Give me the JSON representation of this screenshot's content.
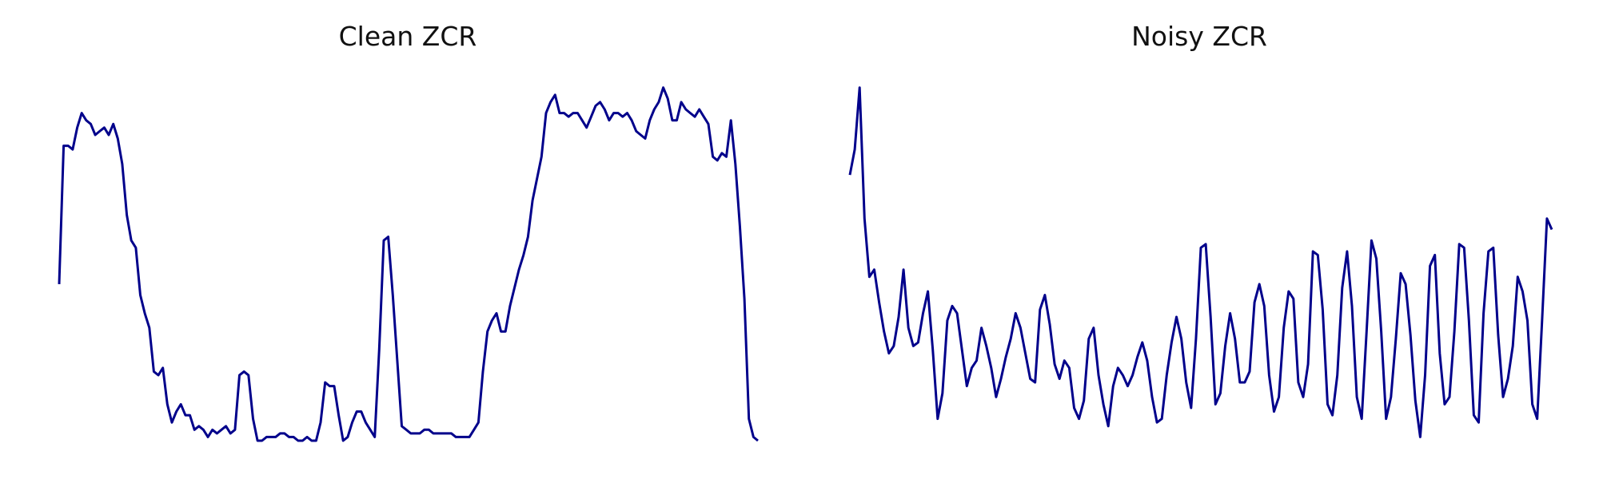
{
  "style": {
    "line_color": "#00008b",
    "background": "#ffffff"
  },
  "chart_data": [
    {
      "type": "line",
      "title": "Clean ZCR",
      "xlabel": "",
      "ylabel": "",
      "axes": "hidden",
      "grid": false,
      "xlim": [
        0,
        130
      ],
      "ylim": [
        0,
        1
      ],
      "series": [
        {
          "values": [
            0.43,
            0.81,
            0.81,
            0.8,
            0.86,
            0.9,
            0.88,
            0.87,
            0.84,
            0.85,
            0.86,
            0.84,
            0.87,
            0.83,
            0.76,
            0.62,
            0.55,
            0.53,
            0.4,
            0.35,
            0.31,
            0.19,
            0.18,
            0.2,
            0.1,
            0.05,
            0.08,
            0.1,
            0.07,
            0.07,
            0.03,
            0.04,
            0.03,
            0.01,
            0.03,
            0.02,
            0.03,
            0.04,
            0.02,
            0.03,
            0.18,
            0.19,
            0.18,
            0.06,
            0.0,
            0.0,
            0.01,
            0.01,
            0.01,
            0.02,
            0.02,
            0.01,
            0.01,
            0.0,
            0.0,
            0.01,
            0.0,
            0.0,
            0.05,
            0.16,
            0.15,
            0.15,
            0.07,
            0.0,
            0.01,
            0.05,
            0.08,
            0.08,
            0.05,
            0.03,
            0.01,
            0.25,
            0.55,
            0.56,
            0.4,
            0.22,
            0.04,
            0.03,
            0.02,
            0.02,
            0.02,
            0.03,
            0.03,
            0.02,
            0.02,
            0.02,
            0.02,
            0.02,
            0.01,
            0.01,
            0.01,
            0.01,
            0.03,
            0.05,
            0.19,
            0.3,
            0.33,
            0.35,
            0.3,
            0.3,
            0.37,
            0.42,
            0.47,
            0.51,
            0.56,
            0.66,
            0.72,
            0.78,
            0.9,
            0.93,
            0.95,
            0.9,
            0.9,
            0.89,
            0.9,
            0.9,
            0.88,
            0.86,
            0.89,
            0.92,
            0.93,
            0.91,
            0.88,
            0.9,
            0.9,
            0.89,
            0.9,
            0.88,
            0.85,
            0.84,
            0.83,
            0.88,
            0.91,
            0.93,
            0.97,
            0.94,
            0.88,
            0.88,
            0.93,
            0.91,
            0.9,
            0.89,
            0.91,
            0.89,
            0.87,
            0.78,
            0.77,
            0.79,
            0.78,
            0.88,
            0.76,
            0.59,
            0.39,
            0.06,
            0.01,
            0.0
          ]
        }
      ]
    },
    {
      "type": "line",
      "title": "Noisy ZCR",
      "xlabel": "",
      "ylabel": "",
      "axes": "hidden",
      "grid": false,
      "xlim": [
        0,
        130
      ],
      "ylim": [
        0,
        1
      ],
      "series": [
        {
          "values": [
            0.73,
            0.8,
            0.97,
            0.61,
            0.45,
            0.47,
            0.38,
            0.3,
            0.24,
            0.26,
            0.34,
            0.47,
            0.31,
            0.26,
            0.27,
            0.35,
            0.41,
            0.25,
            0.06,
            0.13,
            0.33,
            0.37,
            0.35,
            0.25,
            0.15,
            0.2,
            0.22,
            0.31,
            0.26,
            0.2,
            0.12,
            0.17,
            0.23,
            0.28,
            0.35,
            0.31,
            0.24,
            0.17,
            0.16,
            0.36,
            0.4,
            0.32,
            0.21,
            0.17,
            0.22,
            0.2,
            0.09,
            0.06,
            0.11,
            0.28,
            0.31,
            0.18,
            0.1,
            0.04,
            0.15,
            0.2,
            0.18,
            0.15,
            0.18,
            0.23,
            0.27,
            0.22,
            0.12,
            0.05,
            0.06,
            0.18,
            0.27,
            0.34,
            0.28,
            0.16,
            0.09,
            0.28,
            0.53,
            0.54,
            0.34,
            0.1,
            0.13,
            0.26,
            0.35,
            0.28,
            0.16,
            0.16,
            0.19,
            0.38,
            0.43,
            0.37,
            0.18,
            0.08,
            0.12,
            0.31,
            0.41,
            0.39,
            0.16,
            0.12,
            0.21,
            0.52,
            0.51,
            0.36,
            0.1,
            0.07,
            0.18,
            0.42,
            0.52,
            0.37,
            0.12,
            0.06,
            0.3,
            0.55,
            0.5,
            0.3,
            0.06,
            0.12,
            0.28,
            0.46,
            0.43,
            0.29,
            0.11,
            0.01,
            0.18,
            0.48,
            0.51,
            0.24,
            0.1,
            0.12,
            0.3,
            0.54,
            0.53,
            0.33,
            0.07,
            0.05,
            0.35,
            0.52,
            0.53,
            0.29,
            0.12,
            0.17,
            0.26,
            0.45,
            0.41,
            0.33,
            0.1,
            0.06,
            0.33,
            0.61,
            0.58
          ]
        }
      ]
    }
  ]
}
